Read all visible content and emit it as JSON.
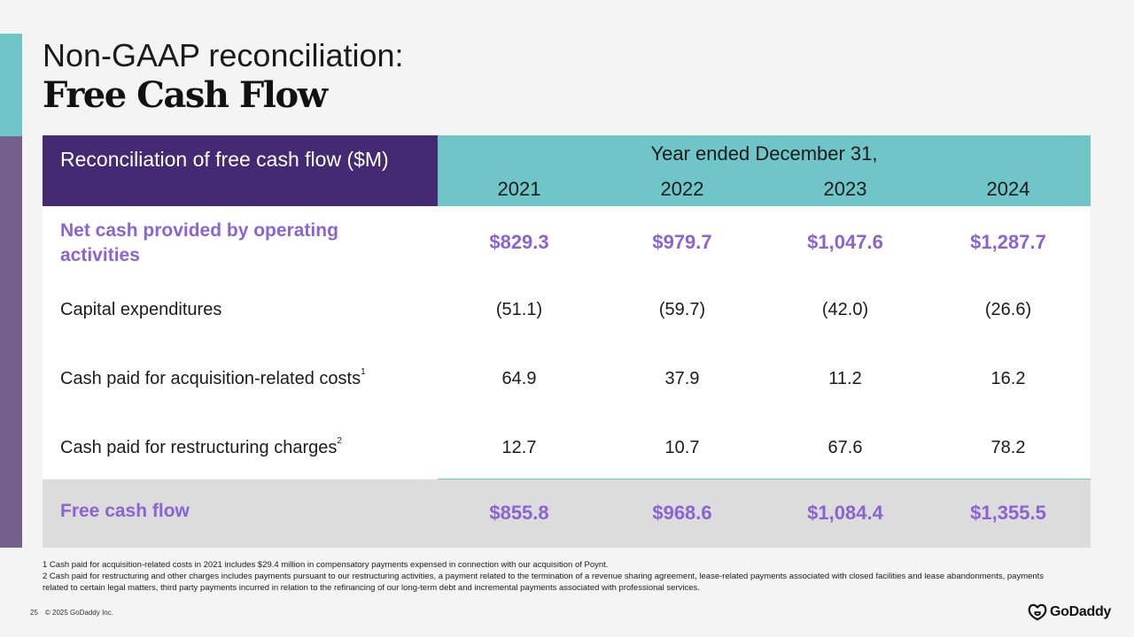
{
  "slide": {
    "title_line1": "Non-GAAP reconciliation:",
    "title_line2": "Free Cash Flow",
    "page_number": "25",
    "copyright": "© 2025 GoDaddy Inc.",
    "logo_text": "GoDaddy",
    "logo_icon": "godaddy-logo-icon"
  },
  "table": {
    "header_label": "Reconciliation of free cash flow ($M)",
    "period_label": "Year ended December 31,",
    "years": [
      "2021",
      "2022",
      "2023",
      "2024"
    ],
    "rows": [
      {
        "label": "Net cash provided by operating activities",
        "values": [
          "$829.3",
          "$979.7",
          "$1,047.6",
          "$1,287.7"
        ]
      },
      {
        "label": "Capital expenditures",
        "values": [
          "(51.1)",
          "(59.7)",
          "(42.0)",
          "(26.6)"
        ]
      },
      {
        "label": "Cash paid for acquisition-related costs",
        "footnote": "1",
        "values": [
          "64.9",
          "37.9",
          "11.2",
          "16.2"
        ]
      },
      {
        "label": "Cash paid for restructuring charges",
        "footnote": "2",
        "values": [
          "12.7",
          "10.7",
          "67.6",
          "78.2"
        ]
      }
    ],
    "total": {
      "label": "Free cash flow",
      "values": [
        "$855.8",
        "$968.6",
        "$1,084.4",
        "$1,355.5"
      ]
    }
  },
  "footnotes": [
    "1 Cash paid for acquisition-related costs in 2021 includes $29.4 million in compensatory payments expensed in connection with our acquisition of Poynt.",
    "2 Cash paid for restructuring and other charges includes payments pursuant to our restructuring activities, a payment related to the termination of a revenue sharing agreement, lease-related payments associated with closed facilities and lease abandonments, payments related to certain legal matters, third party payments incurred in relation to the refinancing of our long-term debt and incremental payments associated with professional services."
  ],
  "colors": {
    "header_purple": "#432a72",
    "header_teal": "#6fc5c7",
    "accent_purple_text": "#8a64d0",
    "side_bar_purple": "#74608c",
    "total_row_gray": "#dcdcdc"
  }
}
